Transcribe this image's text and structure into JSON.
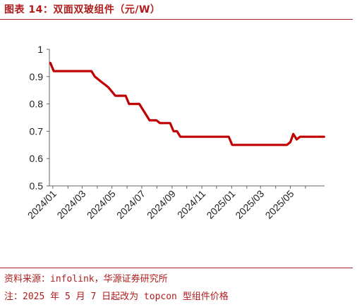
{
  "header": {
    "title": "图表 14：双面双玻组件（元/W）"
  },
  "footer": {
    "source": "资料来源：infolink，华源证券研究所",
    "note": "注：2025 年 5 月 7 日起改为 topcon 型组件价格"
  },
  "colors": {
    "accent": "#b01c1c",
    "series": "#c00000"
  },
  "chart_data": {
    "type": "line",
    "title": "",
    "xlabel": "",
    "ylabel": "",
    "ylim": [
      0.5,
      1.0
    ],
    "yticks": [
      "0.5",
      "0.6",
      "0.7",
      "0.8",
      "0.9",
      "1"
    ],
    "xlim": [
      "2023-12-25",
      "2025-07-10"
    ],
    "xticks": [
      "2024/01",
      "2024/03",
      "2024/05",
      "2024/07",
      "2024/09",
      "2024/11",
      "2025/01",
      "2025/03",
      "2025/05"
    ],
    "grid": false,
    "series": [
      {
        "name": "",
        "points": [
          [
            "2023-12-27",
            0.95
          ],
          [
            "2024-01-03",
            0.92
          ],
          [
            "2024-03-20",
            0.92
          ],
          [
            "2024-03-27",
            0.9
          ],
          [
            "2024-04-10",
            0.88
          ],
          [
            "2024-04-17",
            0.87
          ],
          [
            "2024-04-24",
            0.86
          ],
          [
            "2024-05-08",
            0.83
          ],
          [
            "2024-05-29",
            0.83
          ],
          [
            "2024-06-05",
            0.8
          ],
          [
            "2024-06-26",
            0.8
          ],
          [
            "2024-07-03",
            0.78
          ],
          [
            "2024-07-17",
            0.74
          ],
          [
            "2024-07-31",
            0.74
          ],
          [
            "2024-08-07",
            0.73
          ],
          [
            "2024-08-28",
            0.73
          ],
          [
            "2024-09-04",
            0.7
          ],
          [
            "2024-09-11",
            0.7
          ],
          [
            "2024-09-18",
            0.68
          ],
          [
            "2024-12-26",
            0.68
          ],
          [
            "2025-01-02",
            0.65
          ],
          [
            "2025-04-24",
            0.65
          ],
          [
            "2025-05-01",
            0.66
          ],
          [
            "2025-05-07",
            0.69
          ],
          [
            "2025-05-14",
            0.67
          ],
          [
            "2025-05-21",
            0.68
          ],
          [
            "2025-07-09",
            0.68
          ]
        ]
      }
    ]
  }
}
